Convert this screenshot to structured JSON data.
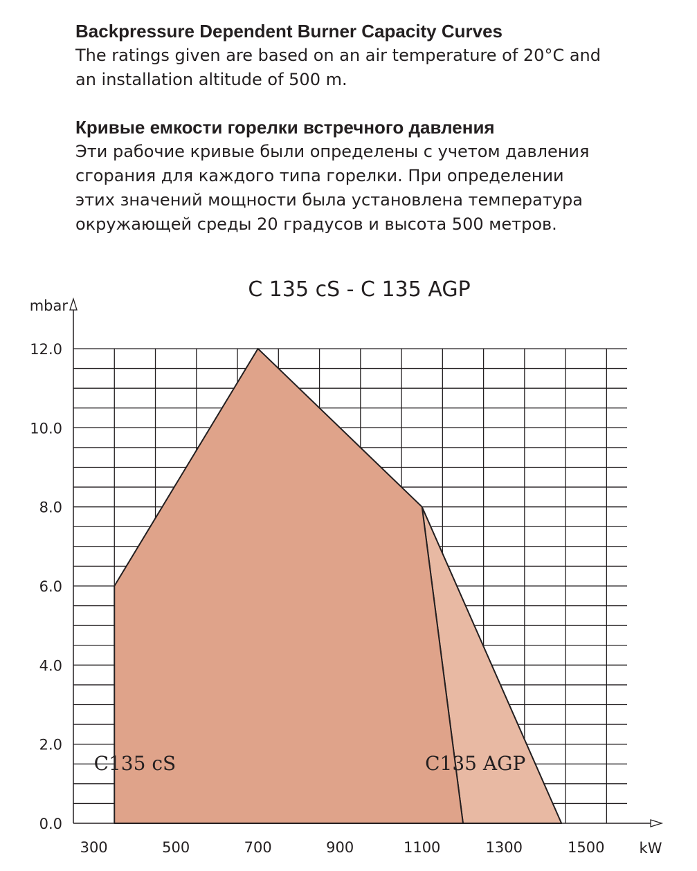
{
  "intro": {
    "english": {
      "heading": "Backpressure Dependent Burner Capacity Curves",
      "lines": [
        "The ratings given are based on an air temperature of 20°C and",
        "an installation altitude of 500 m."
      ]
    },
    "russian": {
      "heading": "Кривые емкости горелки встречного давления",
      "lines": [
        "Эти рабочие кривые были определены с учетом давления",
        "сгорания для каждого типа горелки. При определении",
        "этих значений мощности была установлена температура",
        "окружающей среды 20 градусов и высота 500 метров."
      ]
    }
  },
  "chart_data": {
    "type": "area",
    "title": "C 135 cS - C 135 AGP",
    "xlabel": "kW",
    "ylabel": "mbar",
    "xlim": [
      250,
      1600
    ],
    "ylim": [
      0,
      12.0
    ],
    "x_ticks": [
      300,
      500,
      700,
      900,
      1100,
      1300,
      1500
    ],
    "x_tick_labels": [
      "300",
      "500",
      "700",
      "900",
      "1100",
      "1300",
      "1500"
    ],
    "y_ticks": [
      0,
      2,
      4,
      6,
      8,
      10,
      12
    ],
    "y_tick_labels": [
      "0.0",
      "2.0",
      "4.0",
      "6.0",
      "8.0",
      "10.0",
      "12.0"
    ],
    "x_grid_step": 100,
    "y_grid_step": 0.5,
    "grid": true,
    "series": [
      {
        "name": "C135 cS",
        "color": "#dfa38a",
        "points": [
          [
            350,
            0
          ],
          [
            350,
            6.0
          ],
          [
            700,
            12.0
          ],
          [
            1100,
            8.0
          ],
          [
            1200,
            0
          ]
        ]
      },
      {
        "name": "C135 AGP",
        "color": "#e8b9a3",
        "points": [
          [
            1100,
            8.0
          ],
          [
            1200,
            0
          ],
          [
            1440,
            0
          ]
        ]
      }
    ]
  }
}
